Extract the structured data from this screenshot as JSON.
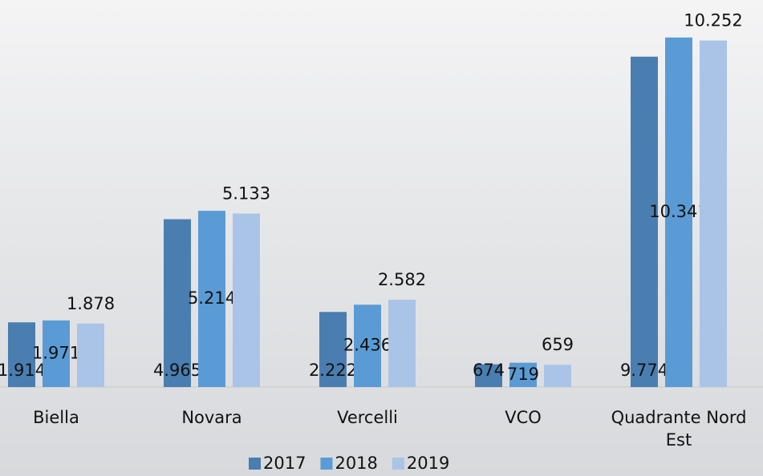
{
  "chart_data": {
    "type": "bar",
    "categories": [
      "Biella",
      "Novara",
      "Vercelli",
      "VCO",
      "Quadrante Nord Est"
    ],
    "series": [
      {
        "name": "2017",
        "color": "#4a7eb0",
        "values": [
          1914,
          4965,
          2222,
          674,
          9774
        ],
        "value_labels": [
          "1.914",
          "4.965",
          "2.222",
          "674",
          "9.774"
        ]
      },
      {
        "name": "2018",
        "color": "#5b9bd5",
        "values": [
          1971,
          5214,
          2436,
          719,
          10341
        ],
        "value_labels": [
          "1.971",
          "5.214",
          "2.436",
          "719",
          "10.341"
        ]
      },
      {
        "name": "2019",
        "color": "#a9c4e6",
        "values": [
          1878,
          5133,
          2582,
          659,
          10252
        ],
        "value_labels": [
          "1.878",
          "5.133",
          "2.582",
          "659",
          "10.252"
        ]
      }
    ],
    "ylim": [
      0,
      11000
    ],
    "legend": "bottom"
  }
}
